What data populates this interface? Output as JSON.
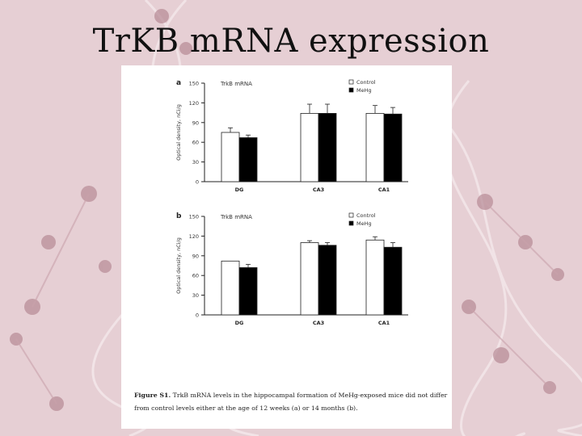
{
  "slide": {
    "title": "TrKB mRNA expression"
  },
  "caption": {
    "label": "Figure S1.",
    "text": "TrkB mRNA levels in the hippocampal formation of MeHg-exposed mice did not differ from control levels either at the age of 12 weeks (a) or 14 months (b)."
  },
  "colors": {
    "background": "#e6cfd4",
    "control_fill": "#ffffff",
    "mehg_fill": "#000000",
    "axis": "#222222"
  },
  "chart_data": [
    {
      "type": "bar",
      "panel_label": "a",
      "title": "TrkB mRNA",
      "ylabel": "Optical density, nCi/g",
      "xlabel": "",
      "categories": [
        "DG",
        "CA3",
        "CA1"
      ],
      "ylim": [
        0,
        150
      ],
      "yticks": [
        0,
        30,
        60,
        90,
        120,
        150
      ],
      "legend_position": "top-right",
      "series": [
        {
          "name": "Control",
          "values": [
            75,
            104,
            104
          ],
          "errors": [
            7,
            14,
            12
          ]
        },
        {
          "name": "MeHg",
          "values": [
            67,
            104,
            103
          ],
          "errors": [
            4,
            14,
            10
          ]
        }
      ]
    },
    {
      "type": "bar",
      "panel_label": "b",
      "title": "TrkB mRNA",
      "ylabel": "Optical density, nCi/g",
      "xlabel": "",
      "categories": [
        "DG",
        "CA3",
        "CA1"
      ],
      "ylim": [
        0,
        150
      ],
      "yticks": [
        0,
        30,
        60,
        90,
        120,
        150
      ],
      "legend_position": "top-right",
      "series": [
        {
          "name": "Control",
          "values": [
            82,
            110,
            114
          ],
          "errors": [
            0,
            3,
            5
          ]
        },
        {
          "name": "MeHg",
          "values": [
            72,
            106,
            103
          ],
          "errors": [
            5,
            4,
            7
          ]
        }
      ]
    }
  ]
}
